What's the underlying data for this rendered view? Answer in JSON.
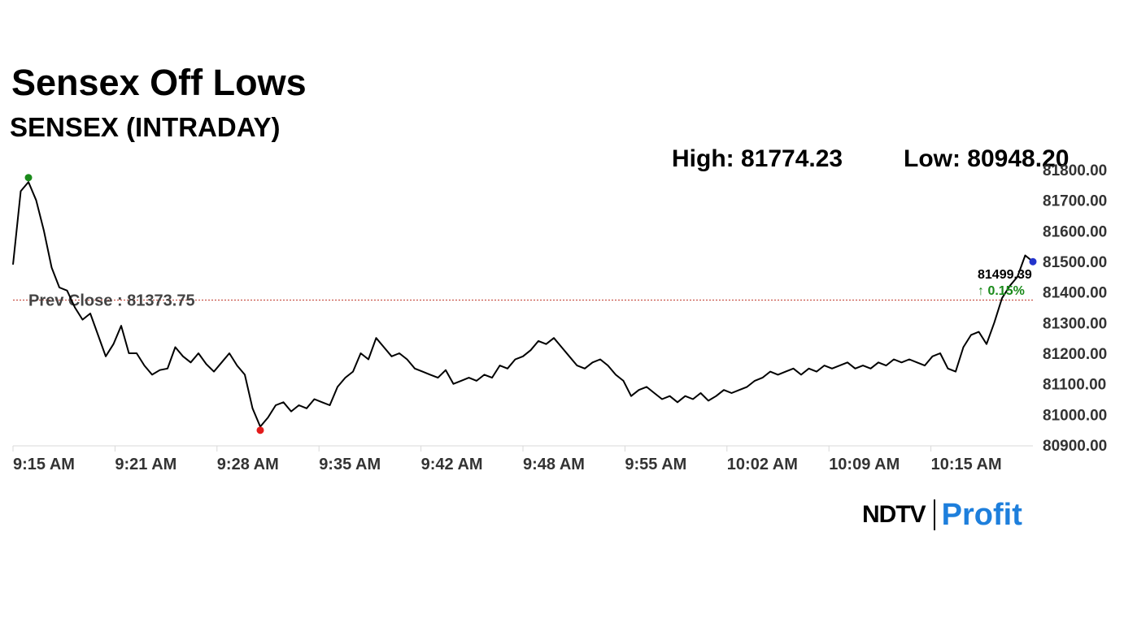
{
  "header": {
    "title": "Sensex Off Lows",
    "subtitle": "SENSEX (INTRADAY)"
  },
  "stats": {
    "high": "High: 81774.23",
    "low": "Low: 80948.20"
  },
  "chart_data": {
    "type": "line",
    "series": [
      {
        "x": [
          "9:15",
          "9:15",
          "9:15",
          "9:16",
          "9:16",
          "9:17",
          "9:17",
          "9:18",
          "9:18",
          "9:19",
          "9:19",
          "9:20",
          "9:20",
          "9:21",
          "9:21",
          "9:22",
          "9:22",
          "9:23",
          "9:23",
          "9:24",
          "9:24",
          "9:25",
          "9:25",
          "9:26",
          "9:26",
          "9:27",
          "9:27",
          "9:28",
          "9:28",
          "9:29",
          "9:29",
          "9:30",
          "9:30",
          "9:31",
          "9:31",
          "9:32",
          "9:32",
          "9:33",
          "9:33",
          "9:34",
          "9:34",
          "9:35",
          "9:35",
          "9:36",
          "9:36",
          "9:37",
          "9:37",
          "9:38",
          "9:38",
          "9:39",
          "9:39",
          "9:40",
          "9:40",
          "9:41",
          "9:41",
          "9:42",
          "9:42",
          "9:43",
          "9:43",
          "9:44",
          "9:44",
          "9:45",
          "9:45",
          "9:46",
          "9:46",
          "9:47",
          "9:47",
          "9:48",
          "9:48",
          "9:49",
          "9:49",
          "9:50",
          "9:50",
          "9:51",
          "9:51",
          "9:52",
          "9:52",
          "9:53",
          "9:53",
          "9:54",
          "9:54",
          "9:55",
          "9:55",
          "9:56",
          "9:56",
          "9:57",
          "9:57",
          "9:58",
          "9:58",
          "9:59",
          "9:59",
          "10:00",
          "10:00",
          "10:01",
          "10:01",
          "10:02",
          "10:02",
          "10:03",
          "10:03",
          "10:04",
          "10:04",
          "10:05",
          "10:05",
          "10:06",
          "10:06",
          "10:07",
          "10:07",
          "10:08",
          "10:08",
          "10:09",
          "10:09",
          "10:10",
          "10:10",
          "10:11",
          "10:11",
          "10:12",
          "10:12",
          "10:13",
          "10:13",
          "10:14",
          "10:14",
          "10:15",
          "10:15",
          "10:16",
          "10:16",
          "10:17",
          "10:17",
          "10:18",
          "10:18",
          "10:19",
          "10:19",
          "10:20",
          "10:20"
        ],
        "values": [
          81490,
          81730,
          81760,
          81700,
          81600,
          81480,
          81415,
          81405,
          81350,
          81310,
          81330,
          81260,
          81190,
          81230,
          81290,
          81200,
          81200,
          81160,
          81130,
          81145,
          81150,
          81220,
          81190,
          81170,
          81200,
          81165,
          81140,
          81170,
          81200,
          81160,
          81130,
          81020,
          80960,
          80990,
          81030,
          81040,
          81010,
          81030,
          81020,
          81050,
          81040,
          81030,
          81090,
          81120,
          81140,
          81200,
          81180,
          81250,
          81220,
          81190,
          81200,
          81180,
          81150,
          81140,
          81130,
          81120,
          81145,
          81100,
          81110,
          81120,
          81110,
          81130,
          81120,
          81160,
          81150,
          81180,
          81190,
          81210,
          81240,
          81230,
          81250,
          81220,
          81190,
          81160,
          81150,
          81170,
          81180,
          81160,
          81130,
          81110,
          81060,
          81080,
          81090,
          81070,
          81050,
          81060,
          81040,
          81060,
          81050,
          81070,
          81045,
          81060,
          81080,
          81070,
          81080,
          81090,
          81110,
          81120,
          81140,
          81130,
          81140,
          81150,
          81130,
          81150,
          81140,
          81160,
          81150,
          81160,
          81170,
          81150,
          81160,
          81150,
          81170,
          81160,
          81180,
          81170,
          81180,
          81170,
          81160,
          81190,
          81200,
          81150,
          81140,
          81220,
          81260,
          81270,
          81230,
          81300,
          81380,
          81420,
          81450,
          81520,
          81499.39
        ],
        "color": "#000000"
      }
    ],
    "x_ticks": [
      "9:15 AM",
      "9:21 AM",
      "9:28 AM",
      "9:35 AM",
      "9:42 AM",
      "9:48 AM",
      "9:55 AM",
      "10:02 AM",
      "10:09 AM",
      "10:15 AM"
    ],
    "y_ticks": [
      "81800.00",
      "81700.00",
      "81600.00",
      "81500.00",
      "81400.00",
      "81300.00",
      "81200.00",
      "81100.00",
      "81000.00",
      "80900.00"
    ],
    "ylim": [
      80900,
      81800
    ],
    "reference_line": {
      "label": "Prev Close : 81373.75",
      "value": 81373.75,
      "color": "#c0392b"
    },
    "markers": {
      "high": {
        "value": 81774.23,
        "color": "#1a8a1a"
      },
      "low": {
        "value": 80948.2,
        "color": "#e31b1b"
      },
      "last": {
        "value": 81499.39,
        "color": "#2233cc"
      }
    },
    "last_value_label": "81499.39",
    "change_label": "↑ 0.15%",
    "change_color": "#1a8a1a",
    "grid": false
  },
  "brand": {
    "primary": "NDTV",
    "secondary": "Profit"
  }
}
